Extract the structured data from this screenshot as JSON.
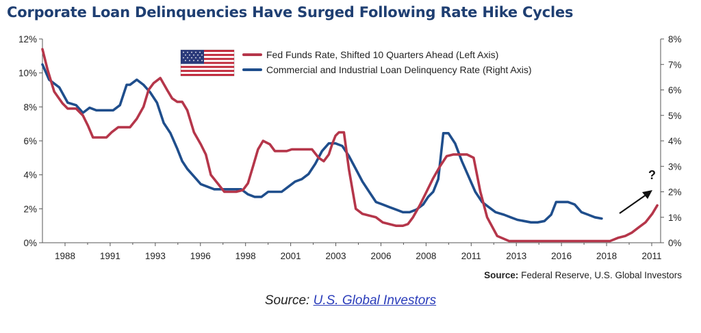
{
  "title": "Corporate Loan Delinquencies Have Surged Following Rate Hike Cycles",
  "source_inner_label": "Source:",
  "source_inner_text": "Federal Reserve, U.S. Global Investors",
  "caption_prefix": "Source:",
  "caption_link": "U.S. Global Investors",
  "colors": {
    "fed": "#b5364a",
    "loan": "#1f4e8c",
    "axis": "#555555",
    "title": "#1f3f72"
  },
  "icons": {
    "flag": "us-flag-icon",
    "arrow": "trend-arrow-icon"
  },
  "chart_data": {
    "type": "line",
    "x_tick_labels": [
      "1988",
      "1991",
      "1993",
      "1996",
      "1998",
      "2001",
      "2003",
      "2006",
      "2008",
      "2011",
      "2013",
      "2016",
      "2018",
      "2011"
    ],
    "y_left": {
      "ticks": [
        "0%",
        "2%",
        "4%",
        "6%",
        "8%",
        "10%",
        "12%"
      ],
      "range": [
        0,
        12
      ]
    },
    "y_right": {
      "ticks": [
        "0%",
        "1%",
        "2%",
        "3%",
        "4%",
        "5%",
        "6%",
        "7%",
        "8%"
      ],
      "range": [
        0,
        8
      ]
    },
    "annotation": "?",
    "legend_position": "top-center",
    "series": [
      {
        "name": "Fed Funds Rate, Shifted 10 Quarters Ahead (Left Axis)",
        "axis": "left",
        "x": [
          1985.8,
          1986.1,
          1986.5,
          1987.0,
          1987.3,
          1987.8,
          1988.2,
          1988.5,
          1988.8,
          1989.2,
          1989.6,
          1989.9,
          1990.3,
          1990.6,
          1991.0,
          1991.4,
          1991.8,
          1992.1,
          1992.4,
          1992.8,
          1993.2,
          1993.5,
          1993.8,
          1994.1,
          1994.4,
          1994.8,
          1995.2,
          1995.5,
          1995.8,
          1996.2,
          1996.6,
          1997.0,
          1997.3,
          1997.7,
          1998.0,
          1998.3,
          1998.6,
          1998.9,
          1999.3,
          1999.6,
          2000.0,
          2000.3,
          2000.6,
          2001.0,
          2001.4,
          2001.8,
          2002.2,
          2002.5,
          2002.8,
          2003.0,
          2003.2,
          2003.4,
          2003.7,
          2004.0,
          2004.4,
          2004.8,
          2005.2,
          2005.6,
          2006.0,
          2006.4,
          2006.8,
          2007.2,
          2007.5,
          2007.8,
          2008.2,
          2008.6,
          2009.0,
          2009.4,
          2009.8,
          2010.2,
          2010.6,
          2011.0,
          2011.4,
          2011.8,
          2012.2,
          2012.8,
          2013.5,
          2014.2,
          2014.9,
          2015.6,
          2016.3,
          2017.0,
          2017.7,
          2018.4,
          2019.0,
          2019.5,
          2020.0,
          2020.4,
          2020.8,
          2021.2,
          2021.6,
          2022.0,
          2022.3
        ],
        "values": [
          11.4,
          10.2,
          8.9,
          8.2,
          7.9,
          7.9,
          7.5,
          6.9,
          6.2,
          6.2,
          6.2,
          6.5,
          6.8,
          6.8,
          6.8,
          7.3,
          8.0,
          9.0,
          9.4,
          9.7,
          9.0,
          8.5,
          8.3,
          8.3,
          7.8,
          6.5,
          5.8,
          5.2,
          4.0,
          3.5,
          3.0,
          3.0,
          3.0,
          3.1,
          3.5,
          4.5,
          5.5,
          6.0,
          5.8,
          5.4,
          5.4,
          5.4,
          5.5,
          5.5,
          5.5,
          5.5,
          5.0,
          4.8,
          5.2,
          5.8,
          6.3,
          6.5,
          6.5,
          4.3,
          2.0,
          1.7,
          1.6,
          1.5,
          1.2,
          1.1,
          1.0,
          1.0,
          1.1,
          1.5,
          2.2,
          3.0,
          3.8,
          4.5,
          5.1,
          5.2,
          5.2,
          5.2,
          5.0,
          3.0,
          1.5,
          0.4,
          0.1,
          0.1,
          0.1,
          0.1,
          0.1,
          0.1,
          0.1,
          0.1,
          0.1,
          0.1,
          0.3,
          0.4,
          0.6,
          0.9,
          1.2,
          1.7,
          2.2
        ]
      },
      {
        "name": "Commercial and Industrial Loan Delinquency Rate (Right Axis)",
        "axis": "right",
        "x": [
          1985.8,
          1986.2,
          1986.8,
          1987.3,
          1987.8,
          1988.2,
          1988.6,
          1989.0,
          1989.5,
          1990.0,
          1990.4,
          1990.8,
          1991.0,
          1991.4,
          1991.8,
          1992.2,
          1992.6,
          1993.0,
          1993.4,
          1993.8,
          1994.1,
          1994.4,
          1994.8,
          1995.2,
          1995.6,
          1996.0,
          1996.4,
          1996.8,
          1997.2,
          1997.6,
          1998.0,
          1998.4,
          1998.8,
          1999.2,
          1999.6,
          2000.0,
          2000.4,
          2000.8,
          2001.2,
          2001.6,
          2002.0,
          2002.4,
          2002.8,
          2003.2,
          2003.6,
          2004.0,
          2004.4,
          2004.8,
          2005.2,
          2005.6,
          2006.0,
          2006.4,
          2006.8,
          2007.2,
          2007.6,
          2008.0,
          2008.4,
          2008.7,
          2009.0,
          2009.3,
          2009.6,
          2009.9,
          2010.3,
          2010.7,
          2011.1,
          2011.5,
          2011.9,
          2012.3,
          2012.7,
          2013.2,
          2013.6,
          2014.0,
          2014.4,
          2014.8,
          2015.2,
          2015.6,
          2016.0,
          2016.3,
          2016.6,
          2017.0,
          2017.4,
          2017.8,
          2018.2,
          2018.6,
          2019.0
        ],
        "values": [
          7.0,
          6.4,
          6.1,
          5.5,
          5.4,
          5.1,
          5.3,
          5.2,
          5.2,
          5.2,
          5.4,
          6.2,
          6.2,
          6.4,
          6.2,
          5.9,
          5.5,
          4.7,
          4.3,
          3.7,
          3.2,
          2.9,
          2.6,
          2.3,
          2.2,
          2.1,
          2.1,
          2.1,
          2.1,
          2.1,
          1.9,
          1.8,
          1.8,
          2.0,
          2.0,
          2.0,
          2.2,
          2.4,
          2.5,
          2.7,
          3.1,
          3.6,
          3.9,
          3.9,
          3.8,
          3.4,
          2.9,
          2.4,
          2.0,
          1.6,
          1.5,
          1.4,
          1.3,
          1.2,
          1.2,
          1.3,
          1.5,
          1.8,
          2.0,
          2.5,
          4.3,
          4.3,
          3.9,
          3.2,
          2.6,
          2.0,
          1.6,
          1.4,
          1.2,
          1.1,
          1.0,
          0.9,
          0.85,
          0.8,
          0.8,
          0.85,
          1.1,
          1.6,
          1.6,
          1.6,
          1.5,
          1.2,
          1.1,
          1.0,
          0.95
        ]
      }
    ]
  }
}
